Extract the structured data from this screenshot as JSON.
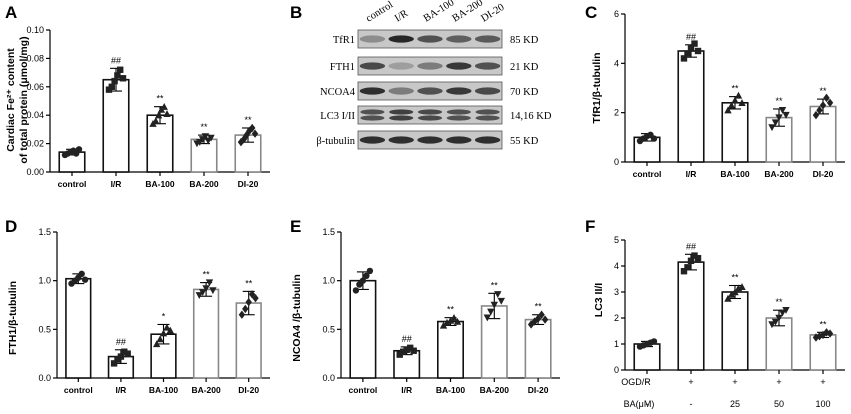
{
  "chart_data": [
    {
      "panel": "A",
      "type": "bar",
      "ylabel_line1": "Cardiac Fe²⁺ content",
      "ylabel_line2": "of total protein (μmol/mg)",
      "ylim": [
        0,
        0.1
      ],
      "yticks": [
        "0.00",
        "0.02",
        "0.04",
        "0.06",
        "0.08",
        "0.10"
      ],
      "categories": [
        "control",
        "I/R",
        "BA-100",
        "BA-200",
        "DI-20"
      ],
      "values": [
        0.014,
        0.065,
        0.04,
        0.023,
        0.026
      ],
      "errors": [
        0.002,
        0.008,
        0.006,
        0.003,
        0.005
      ],
      "points": [
        [
          0.012,
          0.013,
          0.014,
          0.015,
          0.013,
          0.016
        ],
        [
          0.058,
          0.06,
          0.064,
          0.068,
          0.072,
          0.066
        ],
        [
          0.034,
          0.036,
          0.04,
          0.044,
          0.046,
          0.041
        ],
        [
          0.02,
          0.021,
          0.023,
          0.025,
          0.022,
          0.024
        ],
        [
          0.021,
          0.023,
          0.026,
          0.029,
          0.031,
          0.027
        ]
      ],
      "markers": [
        "circle",
        "square",
        "triangle",
        "inv-triangle",
        "diamond"
      ],
      "annotations": [
        "",
        "##",
        "**",
        "**",
        "**"
      ]
    },
    {
      "panel": "C",
      "type": "bar",
      "ylabel": "TfR1/β-tubulin",
      "ylim": [
        0,
        6
      ],
      "yticks": [
        "0",
        "2",
        "4",
        "6"
      ],
      "categories": [
        "control",
        "I/R",
        "BA-100",
        "BA-200",
        "DI-20"
      ],
      "values": [
        1.0,
        4.5,
        2.4,
        1.8,
        2.25
      ],
      "errors": [
        0.15,
        0.25,
        0.25,
        0.35,
        0.3
      ],
      "points": [
        [
          0.85,
          0.95,
          1.05,
          1.1,
          0.95
        ],
        [
          4.2,
          4.4,
          4.6,
          4.8,
          4.5
        ],
        [
          2.1,
          2.3,
          2.5,
          2.7,
          2.4
        ],
        [
          1.4,
          1.6,
          1.8,
          2.1,
          1.9
        ],
        [
          1.9,
          2.1,
          2.3,
          2.6,
          2.4
        ]
      ],
      "markers": [
        "circle",
        "square",
        "triangle",
        "inv-triangle",
        "diamond"
      ],
      "annotations": [
        "",
        "##",
        "**",
        "**",
        "**"
      ]
    },
    {
      "panel": "D",
      "type": "bar",
      "ylabel": "FTH1/β-tubulin",
      "ylim": [
        0,
        1.5
      ],
      "yticks": [
        "0.0",
        "0.5",
        "1.0",
        "1.5"
      ],
      "categories": [
        "control",
        "I/R",
        "BA-100",
        "BA-200",
        "DI-20"
      ],
      "values": [
        1.02,
        0.22,
        0.45,
        0.91,
        0.77
      ],
      "errors": [
        0.05,
        0.07,
        0.1,
        0.07,
        0.12
      ],
      "points": [
        [
          0.97,
          1.0,
          1.03,
          1.07,
          1.01
        ],
        [
          0.15,
          0.19,
          0.22,
          0.27,
          0.25
        ],
        [
          0.35,
          0.4,
          0.46,
          0.52,
          0.49
        ],
        [
          0.85,
          0.88,
          0.92,
          0.98,
          0.9
        ],
        [
          0.65,
          0.71,
          0.78,
          0.86,
          0.82
        ]
      ],
      "markers": [
        "circle",
        "square",
        "triangle",
        "inv-triangle",
        "diamond"
      ],
      "annotations": [
        "",
        "##",
        "*",
        "**",
        "**"
      ]
    },
    {
      "panel": "E",
      "type": "bar",
      "ylabel": "NCOA4 /β-tubulin",
      "ylim": [
        0,
        1.5
      ],
      "yticks": [
        "0.0",
        "0.5",
        "1.0",
        "1.5"
      ],
      "categories": [
        "control",
        "I/R",
        "BA-100",
        "BA-200",
        "DI-20"
      ],
      "values": [
        1.0,
        0.28,
        0.58,
        0.74,
        0.6
      ],
      "errors": [
        0.09,
        0.04,
        0.04,
        0.13,
        0.05
      ],
      "points": [
        [
          0.9,
          0.96,
          1.0,
          1.05,
          1.1
        ],
        [
          0.24,
          0.27,
          0.29,
          0.31,
          0.28
        ],
        [
          0.54,
          0.57,
          0.59,
          0.62,
          0.58
        ],
        [
          0.62,
          0.68,
          0.75,
          0.86,
          0.79
        ],
        [
          0.55,
          0.58,
          0.61,
          0.65,
          0.6
        ]
      ],
      "markers": [
        "circle",
        "square",
        "triangle",
        "inv-triangle",
        "diamond"
      ],
      "annotations": [
        "",
        "##",
        "**",
        "**",
        "**"
      ]
    },
    {
      "panel": "F",
      "type": "bar",
      "ylabel": "LC3 II/I",
      "ylim": [
        0,
        5
      ],
      "yticks": [
        "0",
        "1",
        "2",
        "3",
        "4",
        "5"
      ],
      "categories": [
        "",
        "",
        "",
        "",
        ""
      ],
      "values": [
        1.0,
        4.15,
        3.0,
        2.0,
        1.35
      ],
      "errors": [
        0.1,
        0.3,
        0.25,
        0.3,
        0.1
      ],
      "points": [
        [
          0.9,
          0.95,
          1.0,
          1.05,
          1.1
        ],
        [
          3.8,
          3.95,
          4.2,
          4.4,
          4.3
        ],
        [
          2.75,
          2.9,
          3.0,
          3.15,
          3.2
        ],
        [
          1.75,
          1.85,
          2.0,
          2.2,
          2.3
        ],
        [
          1.25,
          1.3,
          1.35,
          1.45,
          1.4
        ]
      ],
      "markers": [
        "circle",
        "square",
        "triangle",
        "inv-triangle",
        "diamond"
      ],
      "annotations": [
        "",
        "##",
        "**",
        "**",
        "**"
      ],
      "conditions": [
        {
          "label": "OGD/R",
          "values": [
            "-",
            "+",
            "+",
            "+",
            "+"
          ]
        },
        {
          "label": "BA(μM)",
          "values": [
            "-",
            "-",
            "25",
            "50",
            "100"
          ]
        }
      ]
    }
  ],
  "panel_labels": [
    "A",
    "B",
    "C",
    "D",
    "E",
    "F"
  ],
  "blot": {
    "lane_labels": [
      "control",
      "I/R",
      "BA-100",
      "BA-200",
      "DI-20"
    ],
    "rows": [
      {
        "protein": "TfR1",
        "size": "85 KD",
        "intensity": [
          0.35,
          0.95,
          0.7,
          0.62,
          0.65
        ],
        "double": false
      },
      {
        "protein": "FTH1",
        "size": "21 KD",
        "intensity": [
          0.75,
          0.25,
          0.45,
          0.85,
          0.7
        ],
        "double": false
      },
      {
        "protein": "NCOA4",
        "size": "70 KD",
        "intensity": [
          0.9,
          0.45,
          0.7,
          0.85,
          0.75
        ],
        "double": false
      },
      {
        "protein": "LC3 I/II",
        "size": "14,16 KD",
        "intensity": [
          0.7,
          0.8,
          0.75,
          0.7,
          0.7
        ],
        "double": true
      },
      {
        "protein": "β-tubulin",
        "size": "55 KD",
        "intensity": [
          0.9,
          0.9,
          0.9,
          0.9,
          0.9
        ],
        "double": false
      }
    ]
  }
}
